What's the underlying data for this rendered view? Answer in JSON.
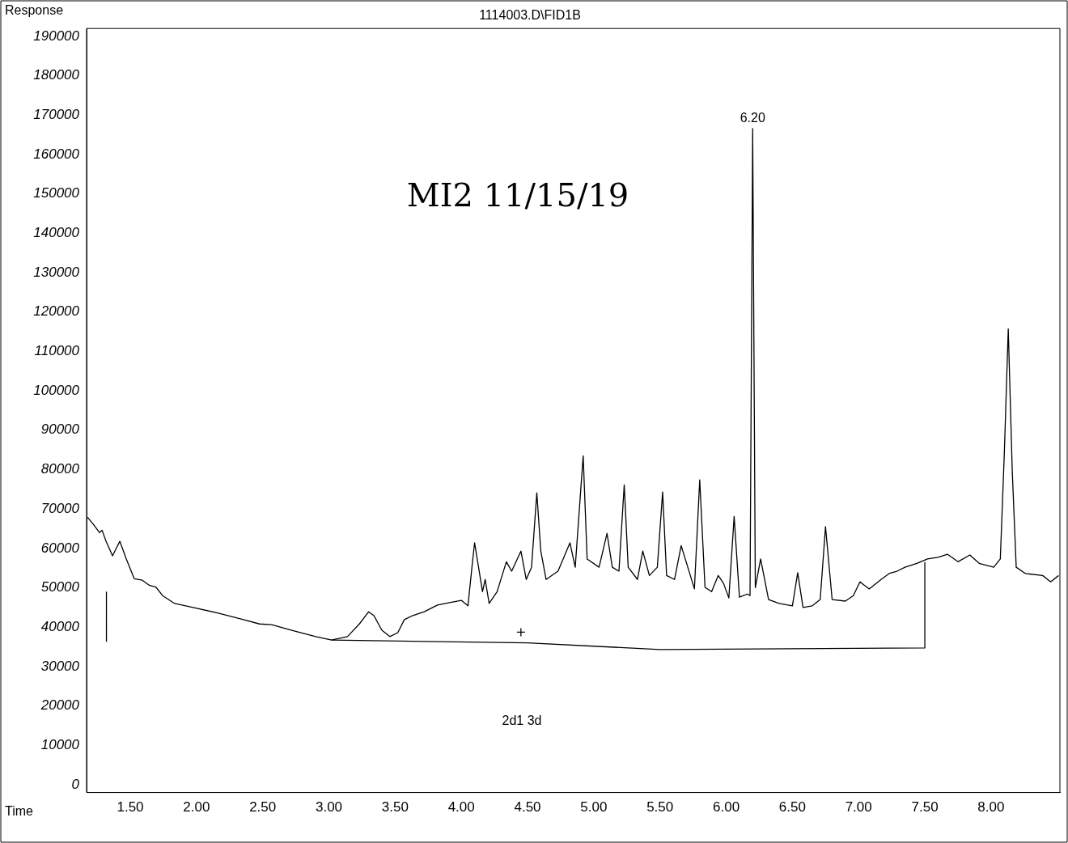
{
  "chart_data": {
    "type": "line",
    "title": "1114003.D\\FID1B",
    "xlabel": "Time",
    "ylabel": "Response",
    "xlim": [
      1.17,
      8.52
    ],
    "ylim": [
      -2000,
      192000
    ],
    "xticks": [
      {
        "value": 1.5,
        "label": "1.50"
      },
      {
        "value": 2,
        "label": "2.00"
      },
      {
        "value": 2.5,
        "label": "2.50"
      },
      {
        "value": 3,
        "label": "3.00"
      },
      {
        "value": 3.5,
        "label": "3.50"
      },
      {
        "value": 4,
        "label": "4.00"
      },
      {
        "value": 4.5,
        "label": "4.50"
      },
      {
        "value": 5,
        "label": "5.00"
      },
      {
        "value": 5.5,
        "label": "5.50"
      },
      {
        "value": 6,
        "label": "6.00"
      },
      {
        "value": 6.5,
        "label": "6.50"
      },
      {
        "value": 7,
        "label": "7.00"
      },
      {
        "value": 7.5,
        "label": "7.50"
      },
      {
        "value": 8,
        "label": "8.00"
      }
    ],
    "yticks": [
      0,
      10000,
      20000,
      30000,
      40000,
      50000,
      60000,
      70000,
      80000,
      90000,
      100000,
      110000,
      120000,
      130000,
      140000,
      150000,
      160000,
      170000,
      180000,
      190000
    ],
    "grid": false,
    "legend": false,
    "marker": "none",
    "line_style": "solid",
    "annotations": [
      {
        "text": "6.20",
        "x": 6.2,
        "y": 166600
      },
      "2d1 3d",
      "MI2 11/15/19"
    ],
    "series": [
      {
        "color": "#000000",
        "x": [
          1.177,
          1.226,
          1.268,
          1.287,
          1.317,
          1.366,
          1.421,
          1.47,
          1.53,
          1.591,
          1.64,
          1.695,
          1.744,
          1.835,
          1.988,
          2.171,
          2.354,
          2.476,
          2.567,
          2.72,
          2.9,
          3.02,
          3.14,
          3.23,
          3.3,
          3.34,
          3.4,
          3.46,
          3.52,
          3.57,
          3.63,
          3.72,
          3.82,
          3.91,
          4.0,
          4.05,
          4.08,
          4.1,
          4.13,
          4.16,
          4.18,
          4.21,
          4.27,
          4.34,
          4.38,
          4.45,
          4.49,
          4.53,
          4.57,
          4.6,
          4.64,
          4.73,
          4.82,
          4.86,
          4.92,
          4.95,
          5.04,
          5.1,
          5.14,
          5.19,
          5.23,
          5.26,
          5.33,
          5.37,
          5.42,
          5.48,
          5.52,
          5.55,
          5.61,
          5.66,
          5.71,
          5.76,
          5.8,
          5.84,
          5.89,
          5.94,
          5.98,
          6.02,
          6.06,
          6.1,
          6.16,
          6.18,
          6.2,
          6.22,
          6.26,
          6.32,
          6.4,
          6.5,
          6.54,
          6.58,
          6.65,
          6.71,
          6.75,
          6.8,
          6.9,
          6.96,
          7.01,
          7.08,
          7.17,
          7.23,
          7.29,
          7.35,
          7.44,
          7.52,
          7.6,
          7.67,
          7.75,
          7.84,
          7.91,
          8.02,
          8.07,
          8.1,
          8.13,
          8.16,
          8.19,
          8.26,
          8.39,
          8.45,
          8.51
        ],
        "values": [
          67900,
          65900,
          64000,
          64600,
          61800,
          58100,
          61800,
          57300,
          52300,
          51900,
          50700,
          50100,
          48000,
          46000,
          44900,
          43500,
          41900,
          40800,
          40600,
          39200,
          37600,
          36700,
          37600,
          40800,
          43900,
          42900,
          39200,
          37600,
          38600,
          41900,
          42900,
          43900,
          45600,
          46200,
          46800,
          45400,
          55200,
          61400,
          55200,
          49000,
          52100,
          46000,
          49000,
          56600,
          54200,
          59300,
          52100,
          55200,
          74100,
          59300,
          52100,
          54200,
          61400,
          55200,
          83500,
          57300,
          55200,
          63800,
          55200,
          54200,
          76100,
          55200,
          52100,
          59300,
          53100,
          55200,
          74300,
          53100,
          52100,
          60700,
          55200,
          49700,
          77400,
          50100,
          49000,
          53100,
          51100,
          47400,
          68100,
          47600,
          48400,
          48000,
          166600,
          50000,
          57300,
          47000,
          46000,
          45400,
          53800,
          45000,
          45400,
          47000,
          65500,
          47000,
          46600,
          48000,
          51500,
          49700,
          52100,
          53600,
          54200,
          55200,
          56200,
          57300,
          57700,
          58500,
          56600,
          58300,
          56200,
          55200,
          57300,
          83900,
          115700,
          79800,
          55200,
          53600,
          53100,
          51500,
          53100
        ]
      },
      {
        "color": "#000000",
        "x": [
          3.02,
          4.5,
          5.5,
          7.5,
          7.5
        ],
        "values": [
          36700,
          36000,
          34300,
          34700,
          56500
        ]
      },
      {
        "color": "#000000",
        "x": [
          1.32,
          1.32
        ],
        "values": [
          36300,
          49000
        ]
      },
      {
        "type": "scatter",
        "color": "#000000",
        "marker": "cross",
        "x": [
          4.45
        ],
        "values": [
          38700
        ]
      }
    ]
  }
}
